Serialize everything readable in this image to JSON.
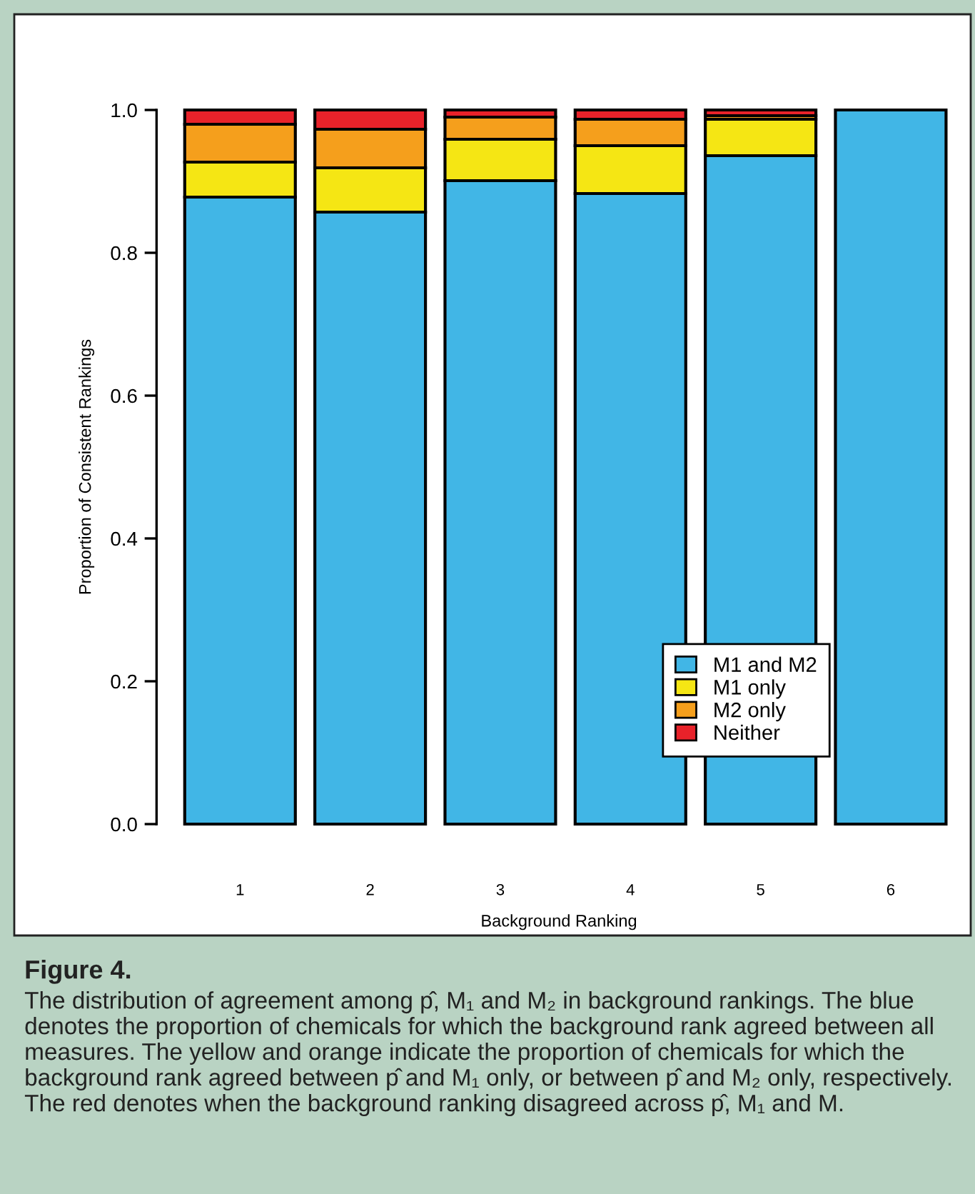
{
  "chart_data": {
    "type": "bar",
    "stacked": true,
    "xlabel": "Background Ranking",
    "ylabel": "Proportion of Consistent Rankings",
    "categories": [
      "1",
      "2",
      "3",
      "4",
      "5",
      "6"
    ],
    "series": [
      {
        "name": "M1 and M2",
        "color": "#41b6e6",
        "values": [
          0.878,
          0.857,
          0.901,
          0.883,
          0.936,
          1.0
        ]
      },
      {
        "name": "M1 only",
        "color": "#f5e614",
        "values": [
          0.049,
          0.062,
          0.058,
          0.067,
          0.051,
          null
        ]
      },
      {
        "name": "M2 only",
        "color": "#f59f1c",
        "values": [
          0.053,
          0.054,
          0.031,
          0.037,
          0.005,
          null
        ]
      },
      {
        "name": "Neither",
        "color": "#e8222a",
        "values": [
          0.02,
          0.027,
          0.01,
          0.013,
          0.008,
          null
        ]
      }
    ],
    "ylim": [
      0,
      1
    ],
    "yticks": [
      {
        "value": 0,
        "label": "0.0"
      },
      {
        "value": 0.2,
        "label": "0.2"
      },
      {
        "value": 0.4,
        "label": "0.4"
      },
      {
        "value": 0.6,
        "label": "0.6"
      },
      {
        "value": 0.8,
        "label": "0.8"
      },
      {
        "value": 1,
        "label": "1.0"
      }
    ],
    "grid": false,
    "legend": "right",
    "annotations": [
      "Figure 4.",
      "The distribution of agreement among p̂, M₁ and M₂ in background rankings. The blue denotes the proportion of chemicals for which the background rank agreed between all measures. The yellow and orange indicate the proportion of chemicals for which the background rank agreed between p̂ and M₁ only, or between p̂ and M₂ only, respectively. The red denotes when the background ranking disagreed across p̂, M₁ and M."
    ]
  }
}
